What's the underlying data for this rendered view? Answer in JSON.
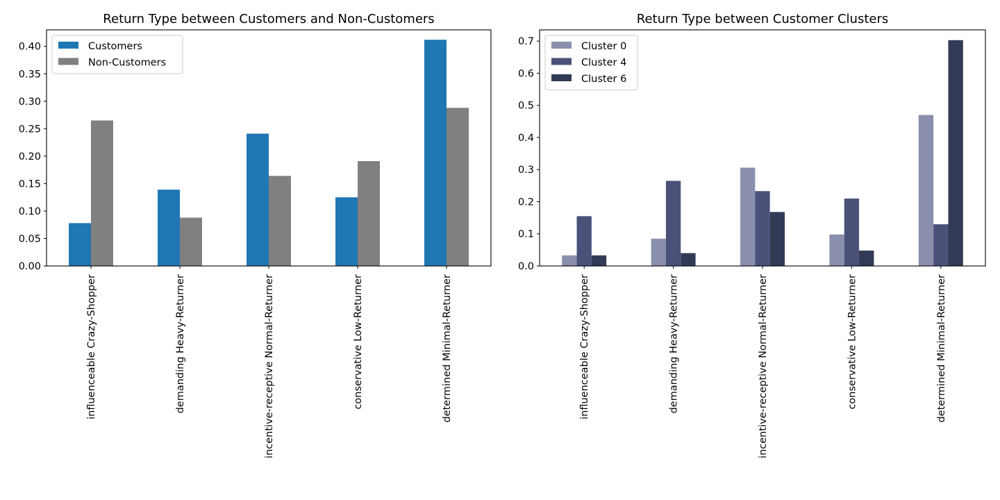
{
  "chart_data": [
    {
      "type": "bar",
      "title": "Return Type between Customers and Non-Customers",
      "categories": [
        "influenceable Crazy-Shopper",
        "demanding Heavy-Returner",
        "incentive-receptive Normal-Returner",
        "conservative Low-Returner",
        "determined Minimal-Returner"
      ],
      "series": [
        {
          "name": "Customers",
          "color": "#1f77b4",
          "values": [
            0.078,
            0.139,
            0.241,
            0.125,
            0.412
          ]
        },
        {
          "name": "Non-Customers",
          "color": "#808080",
          "values": [
            0.265,
            0.088,
            0.164,
            0.191,
            0.288
          ]
        }
      ],
      "ylim": [
        0,
        0.43
      ],
      "yticks": [
        0.0,
        0.05,
        0.1,
        0.15,
        0.2,
        0.25,
        0.3,
        0.35,
        0.4
      ],
      "ytick_labels": [
        "0.00",
        "0.05",
        "0.10",
        "0.15",
        "0.20",
        "0.25",
        "0.30",
        "0.35",
        "0.40"
      ],
      "legend": "top-left",
      "grid": false
    },
    {
      "type": "bar",
      "title": "Return Type between Customer Clusters",
      "categories": [
        "influenceable Crazy-Shopper",
        "demanding Heavy-Returner",
        "incentive-receptive Normal-Returner",
        "conservative Low-Returner",
        "determined Minimal-Returner"
      ],
      "series": [
        {
          "name": "Cluster 0",
          "color": "#8a8fad",
          "values": [
            0.033,
            0.085,
            0.306,
            0.098,
            0.47
          ]
        },
        {
          "name": "Cluster 4",
          "color": "#4a527a",
          "values": [
            0.155,
            0.265,
            0.233,
            0.21,
            0.13
          ]
        },
        {
          "name": "Cluster 6",
          "color": "#323a55",
          "values": [
            0.033,
            0.04,
            0.168,
            0.048,
            0.703
          ]
        }
      ],
      "ylim": [
        0,
        0.735
      ],
      "yticks": [
        0.0,
        0.1,
        0.2,
        0.3,
        0.4,
        0.5,
        0.6,
        0.7
      ],
      "ytick_labels": [
        "0.0",
        "0.1",
        "0.2",
        "0.3",
        "0.4",
        "0.5",
        "0.6",
        "0.7"
      ],
      "legend": "top-left",
      "grid": false
    }
  ]
}
